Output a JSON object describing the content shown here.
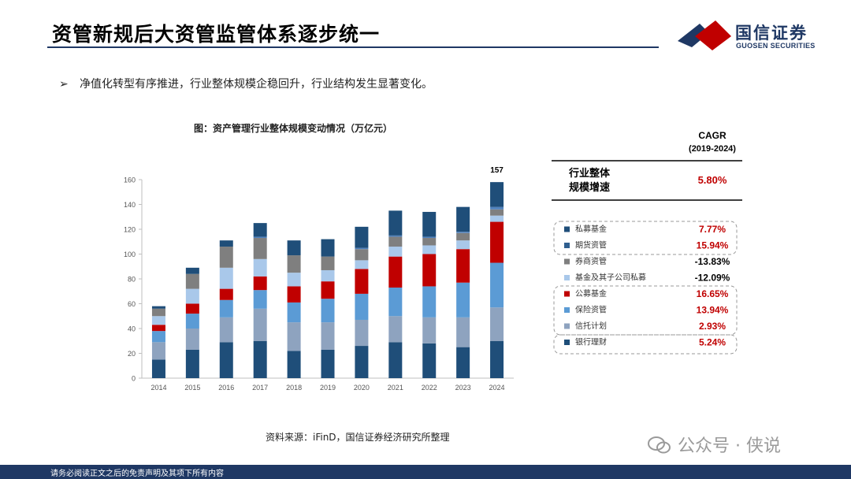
{
  "header": {
    "title": "资管新规后大资管监管体系逐步统一",
    "logo_cn": "国信证券",
    "logo_en": "GUOSEN SECURITIES"
  },
  "bullet": {
    "mark": "➢",
    "text": "净值化转型有序推进，行业整体规模企稳回升，行业结构发生显著变化。"
  },
  "chart_title": "图：资产管理行业整体规模变动情况（万亿元）",
  "chart_data": {
    "type": "bar",
    "stacked": true,
    "categories": [
      "2014",
      "2015",
      "2016",
      "2017",
      "2018",
      "2019",
      "2020",
      "2021",
      "2022",
      "2023",
      "2024"
    ],
    "ylim": [
      0,
      160
    ],
    "yticks": [
      0,
      20,
      40,
      60,
      80,
      100,
      120,
      140,
      160
    ],
    "top_label": {
      "category": "2024",
      "text": "157"
    },
    "series": [
      {
        "name": "银行理财",
        "color": "#1f4e79",
        "values": [
          15,
          23,
          29,
          30,
          22,
          23,
          26,
          29,
          28,
          25,
          30
        ]
      },
      {
        "name": "信托计划",
        "color": "#8ea3bf",
        "values": [
          14,
          17,
          20,
          26,
          23,
          22,
          21,
          21,
          21,
          24,
          27
        ]
      },
      {
        "name": "保险资管",
        "color": "#5b9bd5",
        "values": [
          9,
          12,
          14,
          15,
          16,
          19,
          21,
          23,
          25,
          28,
          36
        ]
      },
      {
        "name": "公募基金",
        "color": "#c00000",
        "values": [
          5,
          8,
          9,
          11,
          13,
          14,
          20,
          25,
          26,
          27,
          33
        ]
      },
      {
        "name": "基金及其子公司私募",
        "color": "#a9c8ea",
        "values": [
          7,
          12,
          17,
          14,
          11,
          9,
          7,
          8,
          7,
          7,
          5
        ]
      },
      {
        "name": "券商资管",
        "color": "#7f7f7f",
        "values": [
          6,
          12,
          17,
          17,
          14,
          11,
          9,
          8,
          6,
          6,
          5
        ]
      },
      {
        "name": "期货资管",
        "color": "#4f81bd",
        "values": [
          0,
          0,
          0,
          1,
          0,
          0,
          1,
          1,
          1,
          1,
          2
        ]
      },
      {
        "name": "私募基金",
        "color": "#1f4e79",
        "values": [
          2,
          5,
          5,
          11,
          12,
          14,
          17,
          20,
          20,
          20,
          20
        ]
      }
    ]
  },
  "cagr": {
    "header_line1": "CAGR",
    "header_line2": "(2019-2024)",
    "overall_label_line1": "行业整体",
    "overall_label_line2": "规模增速",
    "overall_value": "5.80%",
    "rows": [
      {
        "name": "私募基金",
        "value": "7.77%",
        "color": "#c00000",
        "swatch": "#1f4e79"
      },
      {
        "name": "期货资管",
        "value": "15.94%",
        "color": "#c00000",
        "swatch": "#2f5f8f"
      },
      {
        "name": "券商资管",
        "value": "-13.83%",
        "color": "#000000",
        "swatch": "#7f7f7f"
      },
      {
        "name": "基金及其子公司私募",
        "value": "-12.09%",
        "color": "#000000",
        "swatch": "#a9c8ea"
      },
      {
        "name": "公募基金",
        "value": "16.65%",
        "color": "#c00000",
        "swatch": "#c00000"
      },
      {
        "name": "保险资管",
        "value": "13.94%",
        "color": "#c00000",
        "swatch": "#5b9bd5"
      },
      {
        "name": "信托计划",
        "value": "2.93%",
        "color": "#c00000",
        "swatch": "#8ea3bf"
      },
      {
        "name": "银行理财",
        "value": "5.24%",
        "color": "#c00000",
        "swatch": "#1f4e79"
      }
    ]
  },
  "source": "资料来源：iFinD，国信证券经济研究所整理",
  "watermark": "公众号 · 侠说",
  "footer": "请务必阅读正文之后的免责声明及其项下所有内容"
}
